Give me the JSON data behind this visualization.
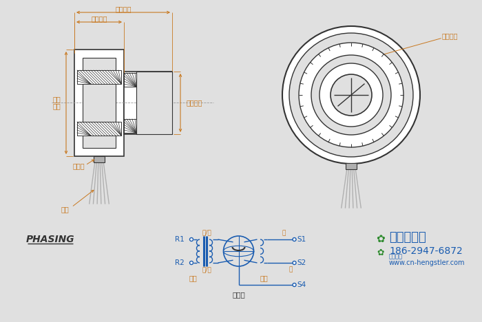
{
  "bg_color": "#e0e0e0",
  "line_color": "#333333",
  "dim_color": "#c87820",
  "blue_color": "#1a5cb0",
  "green_color": "#2d8a2d",
  "phasing_text": "PHASING",
  "labels": {
    "rotor_length": "转子长度",
    "shell_length": "外屺长度",
    "shell_od_1": "外屺",
    "shell_od_2": "外径",
    "rotor_od": "转子外径",
    "mount_seg": "安装段",
    "wire_out": "出线",
    "rotor_id": "转子内径",
    "R1": "R1",
    "R2": "R2",
    "S1": "S1",
    "S2": "S2",
    "S4": "S4",
    "red_white": "红/白",
    "black_white": "黑/白",
    "red": "红",
    "black": "黑",
    "primary": "原边",
    "schematic": "原理图",
    "secondary": "副边"
  }
}
